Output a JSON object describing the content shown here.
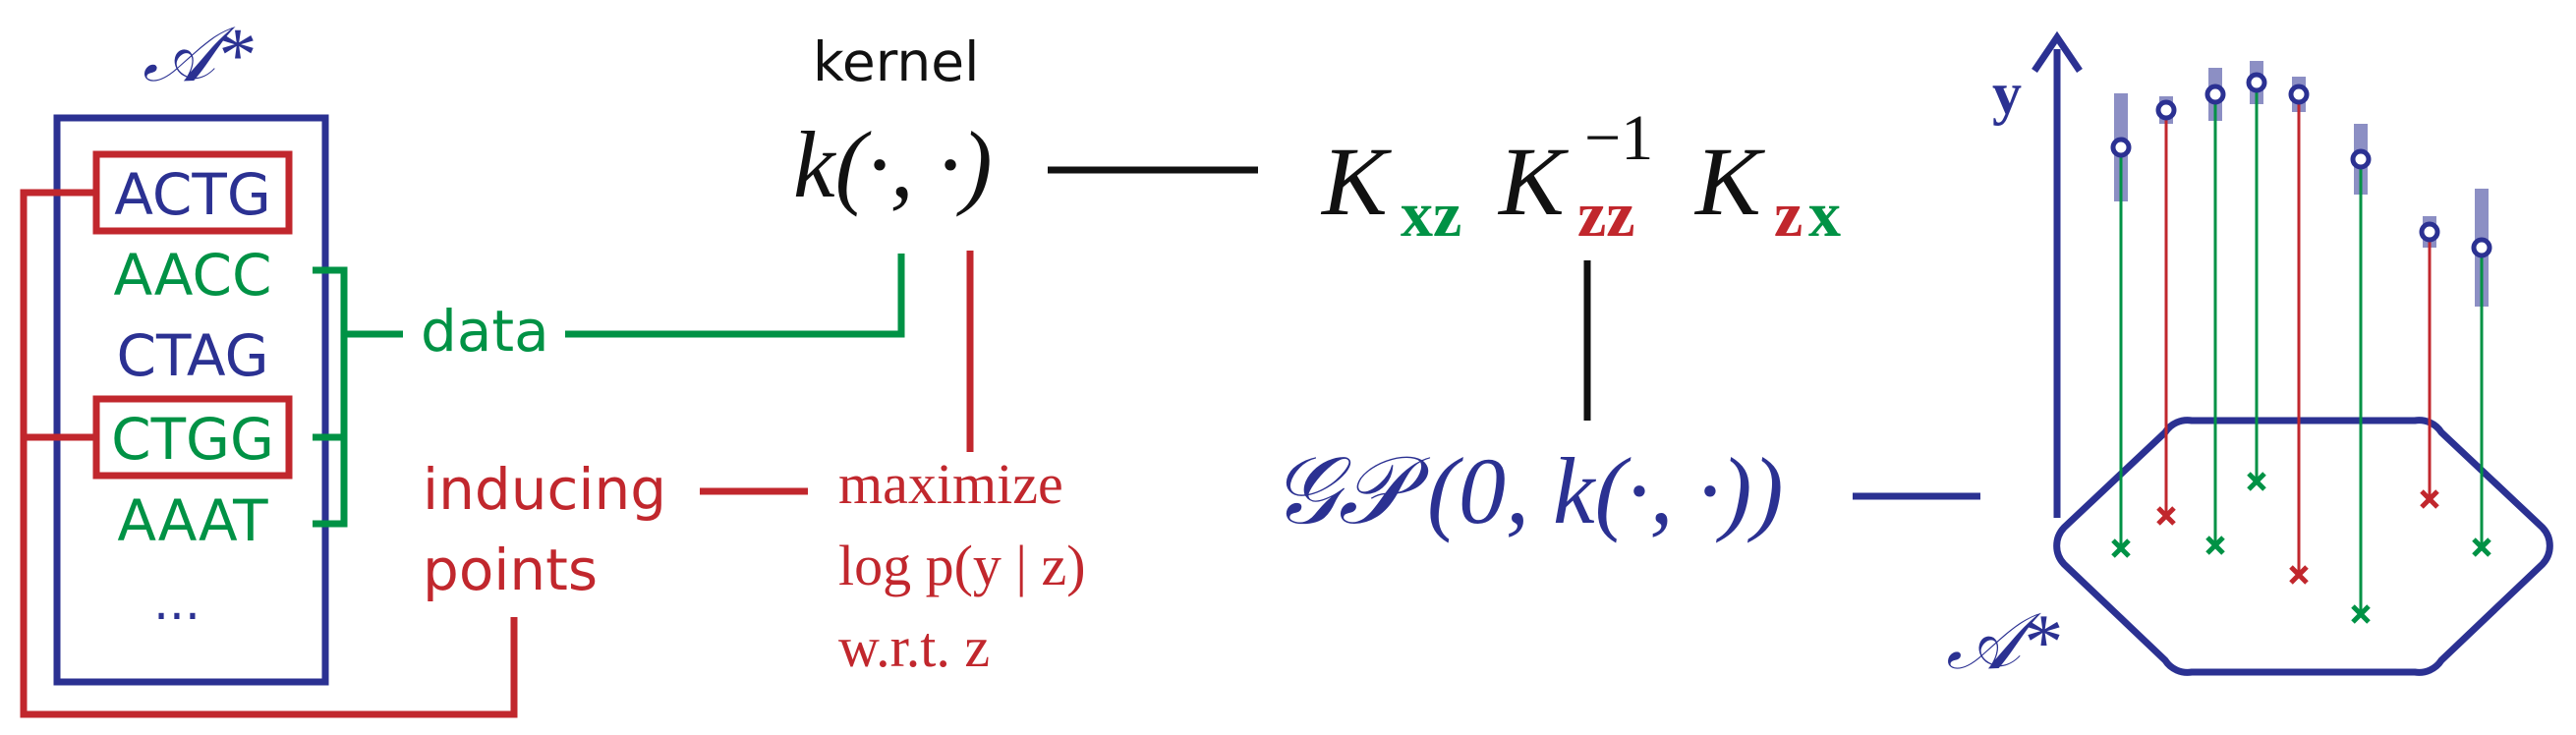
{
  "colors": {
    "blue": "#2b3192",
    "red": "#c1272d",
    "green": "#009245",
    "black": "#111111",
    "error_bar": "#8c8fc4"
  },
  "alphabet_box": {
    "title": "𝒜*",
    "sequences": [
      {
        "text": "ACTG",
        "color": "blue",
        "boxed": true
      },
      {
        "text": "AACC",
        "color": "green",
        "boxed": false
      },
      {
        "text": "CTAG",
        "color": "blue",
        "boxed": false
      },
      {
        "text": "CTGG",
        "color": "green",
        "boxed": true
      },
      {
        "text": "AAAT",
        "color": "green",
        "boxed": false
      },
      {
        "text": "...",
        "color": "blue",
        "boxed": false
      }
    ]
  },
  "labels": {
    "data": "data",
    "inducing_line1": "inducing",
    "inducing_line2": "points",
    "kernel_title": "kernel",
    "kernel_expr": "k(·, ·)",
    "maximize_line1": "maximize",
    "maximize_line2": "log p(y | z)",
    "maximize_line3": "w.r.t. z",
    "gp_script": "𝒢𝒫",
    "gp_args": "(0, k(·, ·))",
    "y_axis": "y",
    "space_label": "𝒜*"
  },
  "kernel_matrix": {
    "parts": [
      {
        "base": "K",
        "sub": "xz",
        "sub_colors": [
          "green",
          "green"
        ]
      },
      {
        "base": "K",
        "sub": "zz",
        "sup": "−1",
        "sub_colors": [
          "red",
          "red"
        ]
      },
      {
        "base": "K",
        "sub": "zx",
        "sub_colors": [
          "red",
          "green"
        ]
      }
    ]
  },
  "gp_points": [
    {
      "kind": "data",
      "predicted": true
    },
    {
      "kind": "inducing",
      "predicted": true
    },
    {
      "kind": "data",
      "predicted": true
    },
    {
      "kind": "data",
      "predicted": true
    },
    {
      "kind": "inducing",
      "predicted": true
    },
    {
      "kind": "data",
      "predicted": true
    },
    {
      "kind": "inducing",
      "predicted": true
    },
    {
      "kind": "data",
      "predicted": true
    }
  ]
}
